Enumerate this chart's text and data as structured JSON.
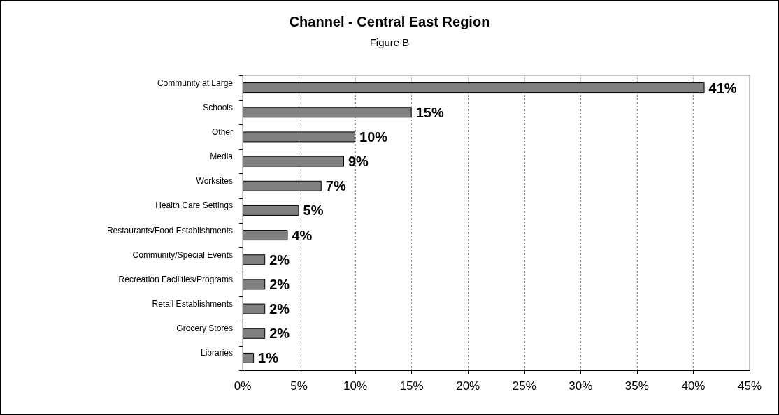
{
  "chart_data": {
    "type": "bar",
    "orientation": "horizontal",
    "title": "Channel - Central East Region",
    "subtitle": "Figure B",
    "categories": [
      "Community at Large",
      "Schools",
      "Other",
      "Media",
      "Worksites",
      "Health Care Settings",
      "Restaurants/Food Establishments",
      "Community/Special Events",
      "Recreation Facilities/Programs",
      "Retail Establishments",
      "Grocery Stores",
      "Libraries"
    ],
    "values": [
      41,
      15,
      10,
      9,
      7,
      5,
      4,
      2,
      2,
      2,
      2,
      1
    ],
    "value_labels": [
      "41%",
      "15%",
      "10%",
      "9%",
      "7%",
      "5%",
      "4%",
      "2%",
      "2%",
      "2%",
      "2%",
      "1%"
    ],
    "color": "#808080",
    "xlim": [
      0,
      45
    ],
    "xticks": [
      {
        "value": 0,
        "label": "0%"
      },
      {
        "value": 5,
        "label": "5%"
      },
      {
        "value": 10,
        "label": "10%"
      },
      {
        "value": 15,
        "label": "15%"
      },
      {
        "value": 20,
        "label": "20%"
      },
      {
        "value": 25,
        "label": "25%"
      },
      {
        "value": 30,
        "label": "30%"
      },
      {
        "value": 35,
        "label": "35%"
      },
      {
        "value": 40,
        "label": "40%"
      },
      {
        "value": 45,
        "label": "45%"
      }
    ],
    "grid": "x"
  }
}
